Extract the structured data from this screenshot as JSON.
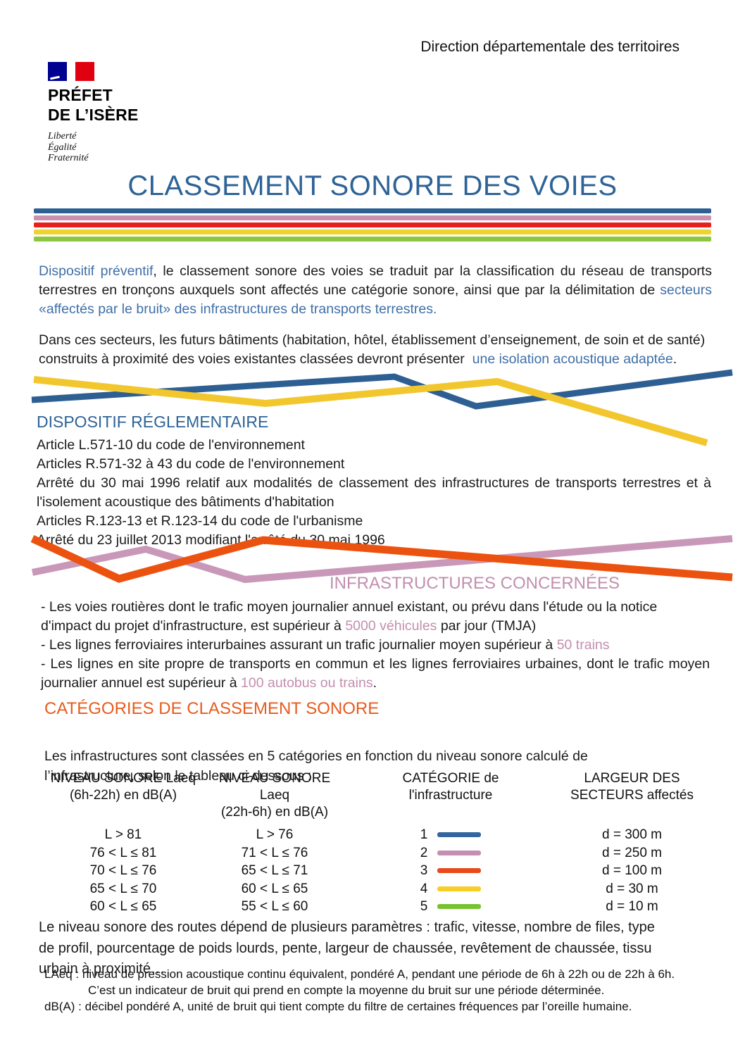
{
  "page": {
    "direction": "Direction départementale des territoires",
    "title": "CLASSEMENT SONORE DES VOIES"
  },
  "logo": {
    "line1": "PRÉFET",
    "line2": "DE L’ISÈRE",
    "motto": [
      "Liberté",
      "Égalité",
      "Fraternité"
    ]
  },
  "palette": {
    "blue": "#2e5f93",
    "yellow": "#f2c72e",
    "orange": "#ec520f",
    "mauve": "#c998b8"
  },
  "separator_bars": [
    "#2e5f93",
    "#c791af",
    "#e8201d",
    "#eed22e",
    "#8dc63f"
  ],
  "intro": {
    "p1": [
      {
        "text": "Dispositif préventif",
        "color": "blue"
      },
      {
        "text": ", le classement sonore des voies se traduit par la classification du réseau de transports terrestres en tronçons auxquels sont affectés une catégorie sonore, ainsi que par la délimitation de ",
        "color": "black"
      },
      {
        "text": "secteurs «affectés par le bruit» des infrastructures de transports terrestres.",
        "color": "blue"
      }
    ],
    "p2": [
      {
        "text": "Dans ces secteurs, les futurs bâtiments (habitation, hôtel, établissement d’enseignement, de soin et de santé) construits à proximité des voies existantes classées devront présenter ",
        "color": "black"
      },
      {
        "text": " une isolation acoustique adaptée",
        "color": "blue"
      },
      {
        "text": ".",
        "color": "black"
      }
    ]
  },
  "reglementaire": {
    "heading": "DISPOSITIF RÉGLEMENTAIRE",
    "items": [
      "Article L.571-10 du code de l'environnement",
      "Articles R.571-32 à 43 du code de l'environnement",
      "Arrêté du 30 mai 1996 relatif aux modalités de classement des infrastructures de transports terrestres et à l'isolement acoustique des bâtiments d'habitation",
      "Articles R.123-13 et R.123-14 du code de l'urbanisme",
      "Arrêté du 23 juillet 2013 modifiant l'arrêté du 30 mai 1996"
    ]
  },
  "infrastructures": {
    "heading": "INFRASTRUCTURES CONCERNÉES",
    "b1": [
      {
        "text": "- Les voies routières dont le trafic moyen journalier annuel existant, ou prévu dans l'étude ou la notice d'impact du projet d'infrastructure, est supérieur à ",
        "color": "black"
      },
      {
        "text": "5000 véhicules",
        "color": "pink"
      },
      {
        "text": " par jour (TMJA)",
        "color": "black"
      }
    ],
    "b2": [
      {
        "text": "- Les lignes ferroviaires interurbaines assurant un trafic journalier moyen supérieur à ",
        "color": "black"
      },
      {
        "text": "50 trains",
        "color": "pink"
      }
    ],
    "b3": [
      {
        "text": "- Les lignes en site propre de transports en commun et les lignes ferroviaires urbaines, dont le trafic moyen journalier annuel est supérieur à ",
        "color": "black"
      },
      {
        "text": "100 autobus ou trains",
        "color": "pink"
      },
      {
        "text": ".",
        "color": "black"
      }
    ]
  },
  "categories": {
    "heading": "CATÉGORIES DE CLASSEMENT SONORE",
    "intro": "Les infrastructures sont classées en 5 catégories en fonction du niveau sonore calculé de l’infrastructure, selon le tableau ci-dessous :",
    "table": {
      "headers": [
        {
          "line1": "NIVEAU SONORE Laeq",
          "line2": "(6h-22h) en dB(A)"
        },
        {
          "line1": "NIVEAU SONORE Laeq",
          "line2": "(22h-6h) en dB(A)"
        },
        {
          "line1": "CATÉGORIE de",
          "line2": "l'infrastructure"
        },
        {
          "line1": "LARGEUR DES",
          "line2": "SECTEURS affectés"
        }
      ],
      "rows": [
        {
          "day": "L > 81",
          "night": "L > 76",
          "category": "1",
          "color": "#33659f",
          "width": "d = 300 m"
        },
        {
          "day": "76 < L ≤ 81",
          "night": "71 < L ≤ 76",
          "category": "2",
          "color": "#c48fb2",
          "width": "d = 250 m"
        },
        {
          "day": "70 < L ≤ 76",
          "night": "65 < L ≤ 71",
          "category": "3",
          "color": "#e84a1a",
          "width": "d = 100 m"
        },
        {
          "day": "65 < L ≤ 70",
          "night": "60 < L ≤ 65",
          "category": "4",
          "color": "#f6ce26",
          "width": "d = 30 m"
        },
        {
          "day": "60 < L ≤ 65",
          "night": "55 < L ≤ 60",
          "category": "5",
          "color": "#76c32e",
          "width": "d = 10 m"
        }
      ]
    },
    "outro": "Le niveau sonore des routes dépend de plusieurs paramètres : trafic, vitesse, nombre de files, type de profil, pourcentage de poids lourds, pente, largeur de chaussée, revêtement de chaussée, tissu urbain à proximité…"
  },
  "footnotes": {
    "l1": "LAeq : niveau de pression acoustique continu équivalent, pondéré A, pendant une période de 6h à 22h ou de 22h à 6h.",
    "l2": "C’est un indicateur de bruit qui prend en compte la moyenne du bruit sur une période déterminée.",
    "l3": "dB(A) : décibel pondéré A, unité de bruit qui tient compte du filtre de certaines fréquences par l’oreille humaine."
  }
}
